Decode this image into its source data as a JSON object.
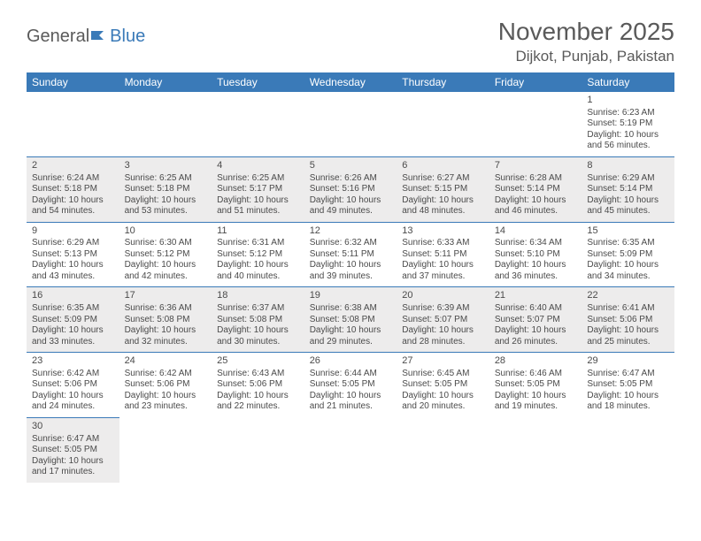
{
  "logo": {
    "text_general": "General",
    "text_blue": "Blue"
  },
  "title": "November 2025",
  "location": "Dijkot, Punjab, Pakistan",
  "colors": {
    "header_bg": "#3a7ab8",
    "header_text": "#ffffff",
    "row_shade": "#edecec",
    "border": "#3a7ab8",
    "text": "#4a4a4a",
    "title_text": "#5a5a5a"
  },
  "weekdays": [
    "Sunday",
    "Monday",
    "Tuesday",
    "Wednesday",
    "Thursday",
    "Friday",
    "Saturday"
  ],
  "weeks": [
    [
      null,
      null,
      null,
      null,
      null,
      null,
      {
        "n": "1",
        "sr": "Sunrise: 6:23 AM",
        "ss": "Sunset: 5:19 PM",
        "dl": "Daylight: 10 hours and 56 minutes."
      }
    ],
    [
      {
        "n": "2",
        "sr": "Sunrise: 6:24 AM",
        "ss": "Sunset: 5:18 PM",
        "dl": "Daylight: 10 hours and 54 minutes."
      },
      {
        "n": "3",
        "sr": "Sunrise: 6:25 AM",
        "ss": "Sunset: 5:18 PM",
        "dl": "Daylight: 10 hours and 53 minutes."
      },
      {
        "n": "4",
        "sr": "Sunrise: 6:25 AM",
        "ss": "Sunset: 5:17 PM",
        "dl": "Daylight: 10 hours and 51 minutes."
      },
      {
        "n": "5",
        "sr": "Sunrise: 6:26 AM",
        "ss": "Sunset: 5:16 PM",
        "dl": "Daylight: 10 hours and 49 minutes."
      },
      {
        "n": "6",
        "sr": "Sunrise: 6:27 AM",
        "ss": "Sunset: 5:15 PM",
        "dl": "Daylight: 10 hours and 48 minutes."
      },
      {
        "n": "7",
        "sr": "Sunrise: 6:28 AM",
        "ss": "Sunset: 5:14 PM",
        "dl": "Daylight: 10 hours and 46 minutes."
      },
      {
        "n": "8",
        "sr": "Sunrise: 6:29 AM",
        "ss": "Sunset: 5:14 PM",
        "dl": "Daylight: 10 hours and 45 minutes."
      }
    ],
    [
      {
        "n": "9",
        "sr": "Sunrise: 6:29 AM",
        "ss": "Sunset: 5:13 PM",
        "dl": "Daylight: 10 hours and 43 minutes."
      },
      {
        "n": "10",
        "sr": "Sunrise: 6:30 AM",
        "ss": "Sunset: 5:12 PM",
        "dl": "Daylight: 10 hours and 42 minutes."
      },
      {
        "n": "11",
        "sr": "Sunrise: 6:31 AM",
        "ss": "Sunset: 5:12 PM",
        "dl": "Daylight: 10 hours and 40 minutes."
      },
      {
        "n": "12",
        "sr": "Sunrise: 6:32 AM",
        "ss": "Sunset: 5:11 PM",
        "dl": "Daylight: 10 hours and 39 minutes."
      },
      {
        "n": "13",
        "sr": "Sunrise: 6:33 AM",
        "ss": "Sunset: 5:11 PM",
        "dl": "Daylight: 10 hours and 37 minutes."
      },
      {
        "n": "14",
        "sr": "Sunrise: 6:34 AM",
        "ss": "Sunset: 5:10 PM",
        "dl": "Daylight: 10 hours and 36 minutes."
      },
      {
        "n": "15",
        "sr": "Sunrise: 6:35 AM",
        "ss": "Sunset: 5:09 PM",
        "dl": "Daylight: 10 hours and 34 minutes."
      }
    ],
    [
      {
        "n": "16",
        "sr": "Sunrise: 6:35 AM",
        "ss": "Sunset: 5:09 PM",
        "dl": "Daylight: 10 hours and 33 minutes."
      },
      {
        "n": "17",
        "sr": "Sunrise: 6:36 AM",
        "ss": "Sunset: 5:08 PM",
        "dl": "Daylight: 10 hours and 32 minutes."
      },
      {
        "n": "18",
        "sr": "Sunrise: 6:37 AM",
        "ss": "Sunset: 5:08 PM",
        "dl": "Daylight: 10 hours and 30 minutes."
      },
      {
        "n": "19",
        "sr": "Sunrise: 6:38 AM",
        "ss": "Sunset: 5:08 PM",
        "dl": "Daylight: 10 hours and 29 minutes."
      },
      {
        "n": "20",
        "sr": "Sunrise: 6:39 AM",
        "ss": "Sunset: 5:07 PM",
        "dl": "Daylight: 10 hours and 28 minutes."
      },
      {
        "n": "21",
        "sr": "Sunrise: 6:40 AM",
        "ss": "Sunset: 5:07 PM",
        "dl": "Daylight: 10 hours and 26 minutes."
      },
      {
        "n": "22",
        "sr": "Sunrise: 6:41 AM",
        "ss": "Sunset: 5:06 PM",
        "dl": "Daylight: 10 hours and 25 minutes."
      }
    ],
    [
      {
        "n": "23",
        "sr": "Sunrise: 6:42 AM",
        "ss": "Sunset: 5:06 PM",
        "dl": "Daylight: 10 hours and 24 minutes."
      },
      {
        "n": "24",
        "sr": "Sunrise: 6:42 AM",
        "ss": "Sunset: 5:06 PM",
        "dl": "Daylight: 10 hours and 23 minutes."
      },
      {
        "n": "25",
        "sr": "Sunrise: 6:43 AM",
        "ss": "Sunset: 5:06 PM",
        "dl": "Daylight: 10 hours and 22 minutes."
      },
      {
        "n": "26",
        "sr": "Sunrise: 6:44 AM",
        "ss": "Sunset: 5:05 PM",
        "dl": "Daylight: 10 hours and 21 minutes."
      },
      {
        "n": "27",
        "sr": "Sunrise: 6:45 AM",
        "ss": "Sunset: 5:05 PM",
        "dl": "Daylight: 10 hours and 20 minutes."
      },
      {
        "n": "28",
        "sr": "Sunrise: 6:46 AM",
        "ss": "Sunset: 5:05 PM",
        "dl": "Daylight: 10 hours and 19 minutes."
      },
      {
        "n": "29",
        "sr": "Sunrise: 6:47 AM",
        "ss": "Sunset: 5:05 PM",
        "dl": "Daylight: 10 hours and 18 minutes."
      }
    ],
    [
      {
        "n": "30",
        "sr": "Sunrise: 6:47 AM",
        "ss": "Sunset: 5:05 PM",
        "dl": "Daylight: 10 hours and 17 minutes."
      },
      null,
      null,
      null,
      null,
      null,
      null
    ]
  ]
}
